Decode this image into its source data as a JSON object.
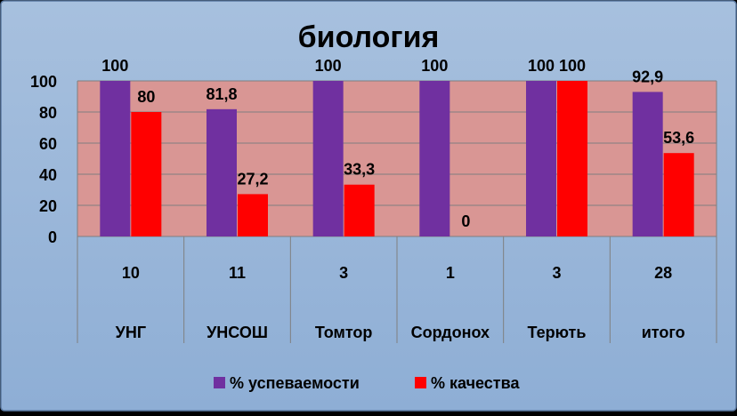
{
  "chart_data": {
    "type": "bar",
    "title": "биология",
    "categories": [
      "УНГ",
      "УНСОШ",
      "Томтор",
      "Сордонох",
      "Терють",
      "итого"
    ],
    "sub_categories": [
      "10",
      "11",
      "3",
      "1",
      "3",
      "28"
    ],
    "series": [
      {
        "name": "% успеваемости",
        "values": [
          100,
          81.8,
          100,
          100,
          100,
          92.9
        ],
        "labels": [
          "100",
          "81,8",
          "100",
          "100",
          "100",
          "92,9"
        ],
        "color": "#7030a0"
      },
      {
        "name": "% качества",
        "values": [
          80,
          27.2,
          33.3,
          0,
          100,
          53.6
        ],
        "labels": [
          "80",
          "27,2",
          "33,3",
          "0",
          "100",
          "53,6"
        ],
        "color": "#ff0000"
      }
    ],
    "ylim": [
      0,
      100
    ],
    "yticks": [
      "0",
      "20",
      "40",
      "60",
      "80",
      "100"
    ],
    "grid": true,
    "legend": "bottom",
    "colors": {
      "plot_bg": "#d99694",
      "chart_bg": "#95b3d7",
      "grid": "#7f7f7f"
    }
  }
}
